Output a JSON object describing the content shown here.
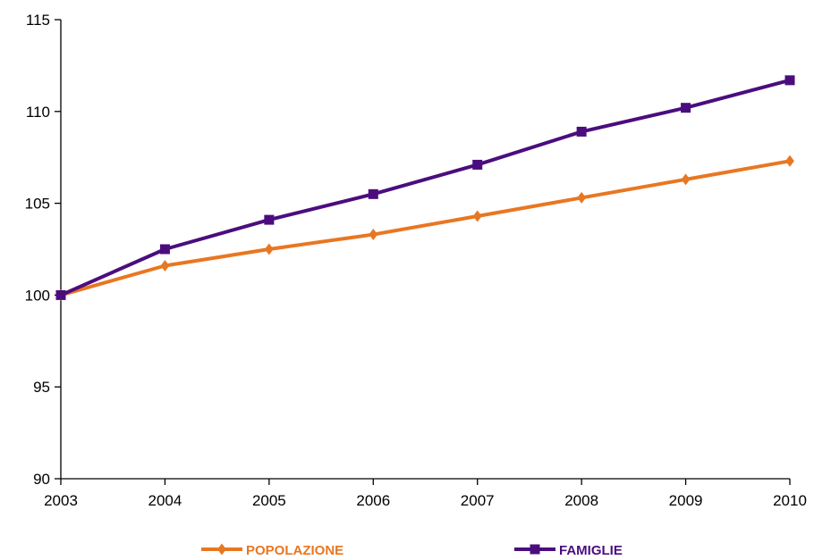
{
  "chart_data": {
    "type": "line",
    "title": "",
    "xlabel": "",
    "ylabel": "",
    "x": [
      "2003",
      "2004",
      "2005",
      "2006",
      "2007",
      "2008",
      "2009",
      "2010"
    ],
    "ylim": [
      90,
      115
    ],
    "yticks": [
      "90",
      "95",
      "100",
      "105",
      "110",
      "115"
    ],
    "grid": false,
    "legend_position": "bottom",
    "series": [
      {
        "name": "POPOLAZIONE",
        "color": "#E87722",
        "marker": "diamond",
        "values": [
          100.0,
          101.6,
          102.5,
          103.3,
          104.3,
          105.3,
          106.3,
          107.3
        ]
      },
      {
        "name": "FAMIGLIE",
        "color": "#4B0D7E",
        "marker": "square",
        "values": [
          100.0,
          102.5,
          104.1,
          105.5,
          107.1,
          108.9,
          110.2,
          111.7
        ]
      }
    ]
  }
}
